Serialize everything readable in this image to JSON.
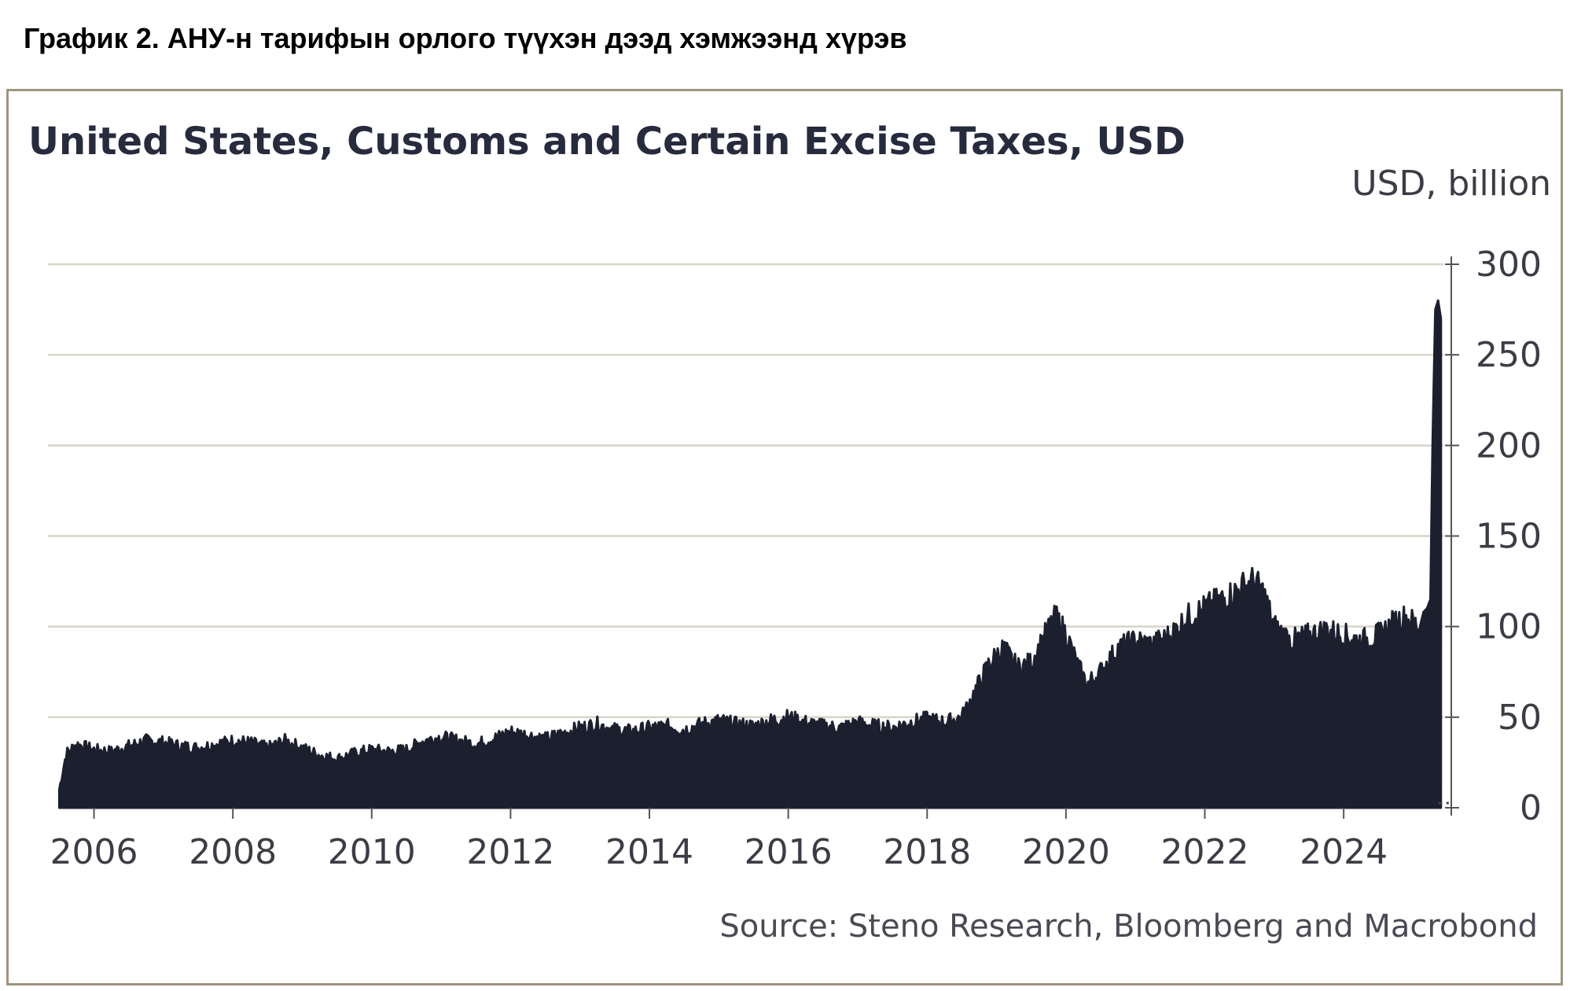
{
  "caption": "График 2. АНУ-н тарифын орлого түүхэн дээд хэмжээнд хүрэв",
  "colors": {
    "series": "#1c1f2e",
    "grid": "#d9d4c8",
    "frame": "#a09580"
  },
  "chart_data": {
    "type": "area",
    "title": "United States, Customs and Certain Excise Taxes, USD",
    "ylabel": "USD, billion",
    "source": "Source: Steno Research, Bloomberg and Macrobond",
    "ylim": [
      0,
      300
    ],
    "xlim": [
      2005.45,
      2025.55
    ],
    "y_ticks": [
      "0",
      "50",
      "100",
      "150",
      "200",
      "250",
      "300"
    ],
    "x_ticks": [
      "2006",
      "2008",
      "2010",
      "2012",
      "2014",
      "2016",
      "2018",
      "2020",
      "2022",
      "2024"
    ],
    "grid": true,
    "series": [
      {
        "x": [
          2005.5,
          2005.6,
          2005.75,
          2006.0,
          2006.25,
          2006.5,
          2006.75,
          2007.0,
          2007.25,
          2007.5,
          2007.75,
          2008.0,
          2008.25,
          2008.5,
          2008.75,
          2009.0,
          2009.25,
          2009.5,
          2009.75,
          2010.0,
          2010.25,
          2010.5,
          2010.75,
          2011.0,
          2011.25,
          2011.5,
          2011.75,
          2012.0,
          2012.25,
          2012.5,
          2012.75,
          2013.0,
          2013.25,
          2013.5,
          2013.75,
          2014.0,
          2014.25,
          2014.5,
          2014.75,
          2015.0,
          2015.25,
          2015.5,
          2015.75,
          2016.0,
          2016.25,
          2016.5,
          2016.75,
          2017.0,
          2017.25,
          2017.5,
          2017.75,
          2018.0,
          2018.25,
          2018.5,
          2018.7,
          2018.9,
          2019.1,
          2019.3,
          2019.5,
          2019.7,
          2019.85,
          2020.0,
          2020.15,
          2020.3,
          2020.5,
          2020.75,
          2021.0,
          2021.25,
          2021.5,
          2021.75,
          2022.0,
          2022.25,
          2022.4,
          2022.55,
          2022.7,
          2022.85,
          2023.0,
          2023.25,
          2023.5,
          2023.75,
          2024.0,
          2024.25,
          2024.5,
          2024.75,
          2024.9,
          2025.0,
          2025.1,
          2025.15,
          2025.2,
          2025.25,
          2025.28,
          2025.32,
          2025.36,
          2025.4
        ],
        "values": [
          10,
          30,
          35,
          32,
          31,
          34,
          37,
          36,
          34,
          33,
          35,
          37,
          36,
          33,
          37,
          33,
          29,
          27,
          30,
          32,
          31,
          32,
          37,
          39,
          37,
          35,
          38,
          42,
          40,
          38,
          41,
          44,
          46,
          43,
          42,
          44,
          45,
          43,
          46,
          48,
          46,
          45,
          48,
          50,
          47,
          45,
          44,
          47,
          45,
          44,
          47,
          49,
          47,
          50,
          65,
          80,
          88,
          77,
          80,
          95,
          105,
          96,
          80,
          68,
          75,
          88,
          92,
          90,
          95,
          105,
          110,
          115,
          118,
          122,
          125,
          118,
          100,
          92,
          95,
          98,
          95,
          92,
          95,
          103,
          105,
          102,
          100,
          108,
          110,
          115,
          200,
          275,
          280,
          270
        ]
      }
    ]
  }
}
